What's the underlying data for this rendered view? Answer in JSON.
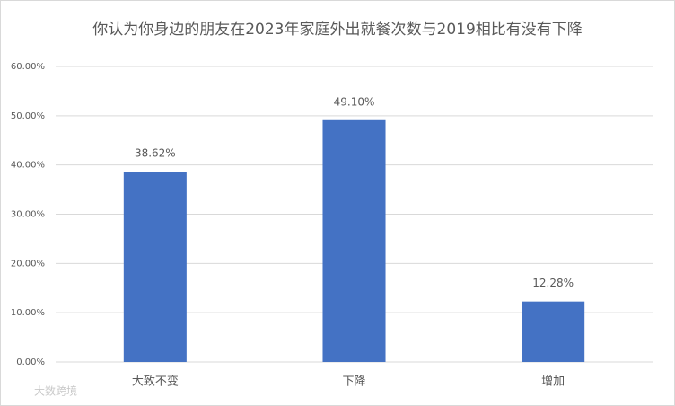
{
  "chart_data": {
    "type": "bar",
    "title": "你认为你身边的朋友在2023年家庭外出就餐次数与2019相比有没有下降",
    "categories": [
      "大致不变",
      "下降",
      "增加"
    ],
    "values": [
      38.62,
      49.1,
      12.28
    ],
    "value_labels": [
      "38.62%",
      "49.10%",
      "12.28%"
    ],
    "color": "#4472c4",
    "ylim": [
      0,
      60
    ],
    "yticks": [
      {
        "value": 0,
        "label": "0.00%"
      },
      {
        "value": 10,
        "label": "10.00%"
      },
      {
        "value": 20,
        "label": "20.00%"
      },
      {
        "value": 30,
        "label": "30.00%"
      },
      {
        "value": 40,
        "label": "40.00%"
      },
      {
        "value": 50,
        "label": "50.00%"
      },
      {
        "value": 60,
        "label": "60.00%"
      }
    ],
    "grid": true,
    "watermark": "大数跨境"
  }
}
